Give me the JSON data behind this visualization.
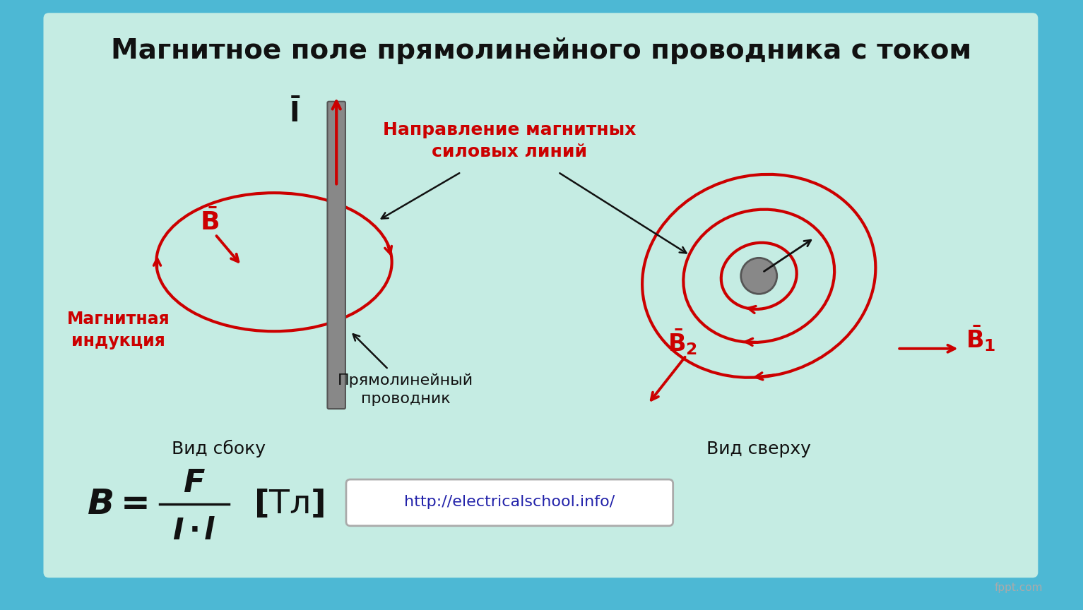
{
  "title": "Магнитное поле прямолинейного проводника с током",
  "bg_color": "#c5ece3",
  "outer_bg": "#4db8d4",
  "title_color": "#111111",
  "red_color": "#cc0000",
  "dark_color": "#111111",
  "url_text": "http://electricalschool.info/",
  "label_vid_sboku": "Вид сбоку",
  "label_vid_sverhu": "Вид сверху",
  "label_magnitnaya_indukciya": "Магнитная\nиндукция",
  "label_pryamolineynyy": "Прямолинейный\nпроводник",
  "label_napravlenie": "Направление магнитных\nсиловых линий",
  "label_I": "$\\bar{I}$",
  "label_B": "$\\bar{B}$",
  "label_B1": "$\\bar{B}_1$",
  "label_B2": "$\\bar{B}_2$"
}
